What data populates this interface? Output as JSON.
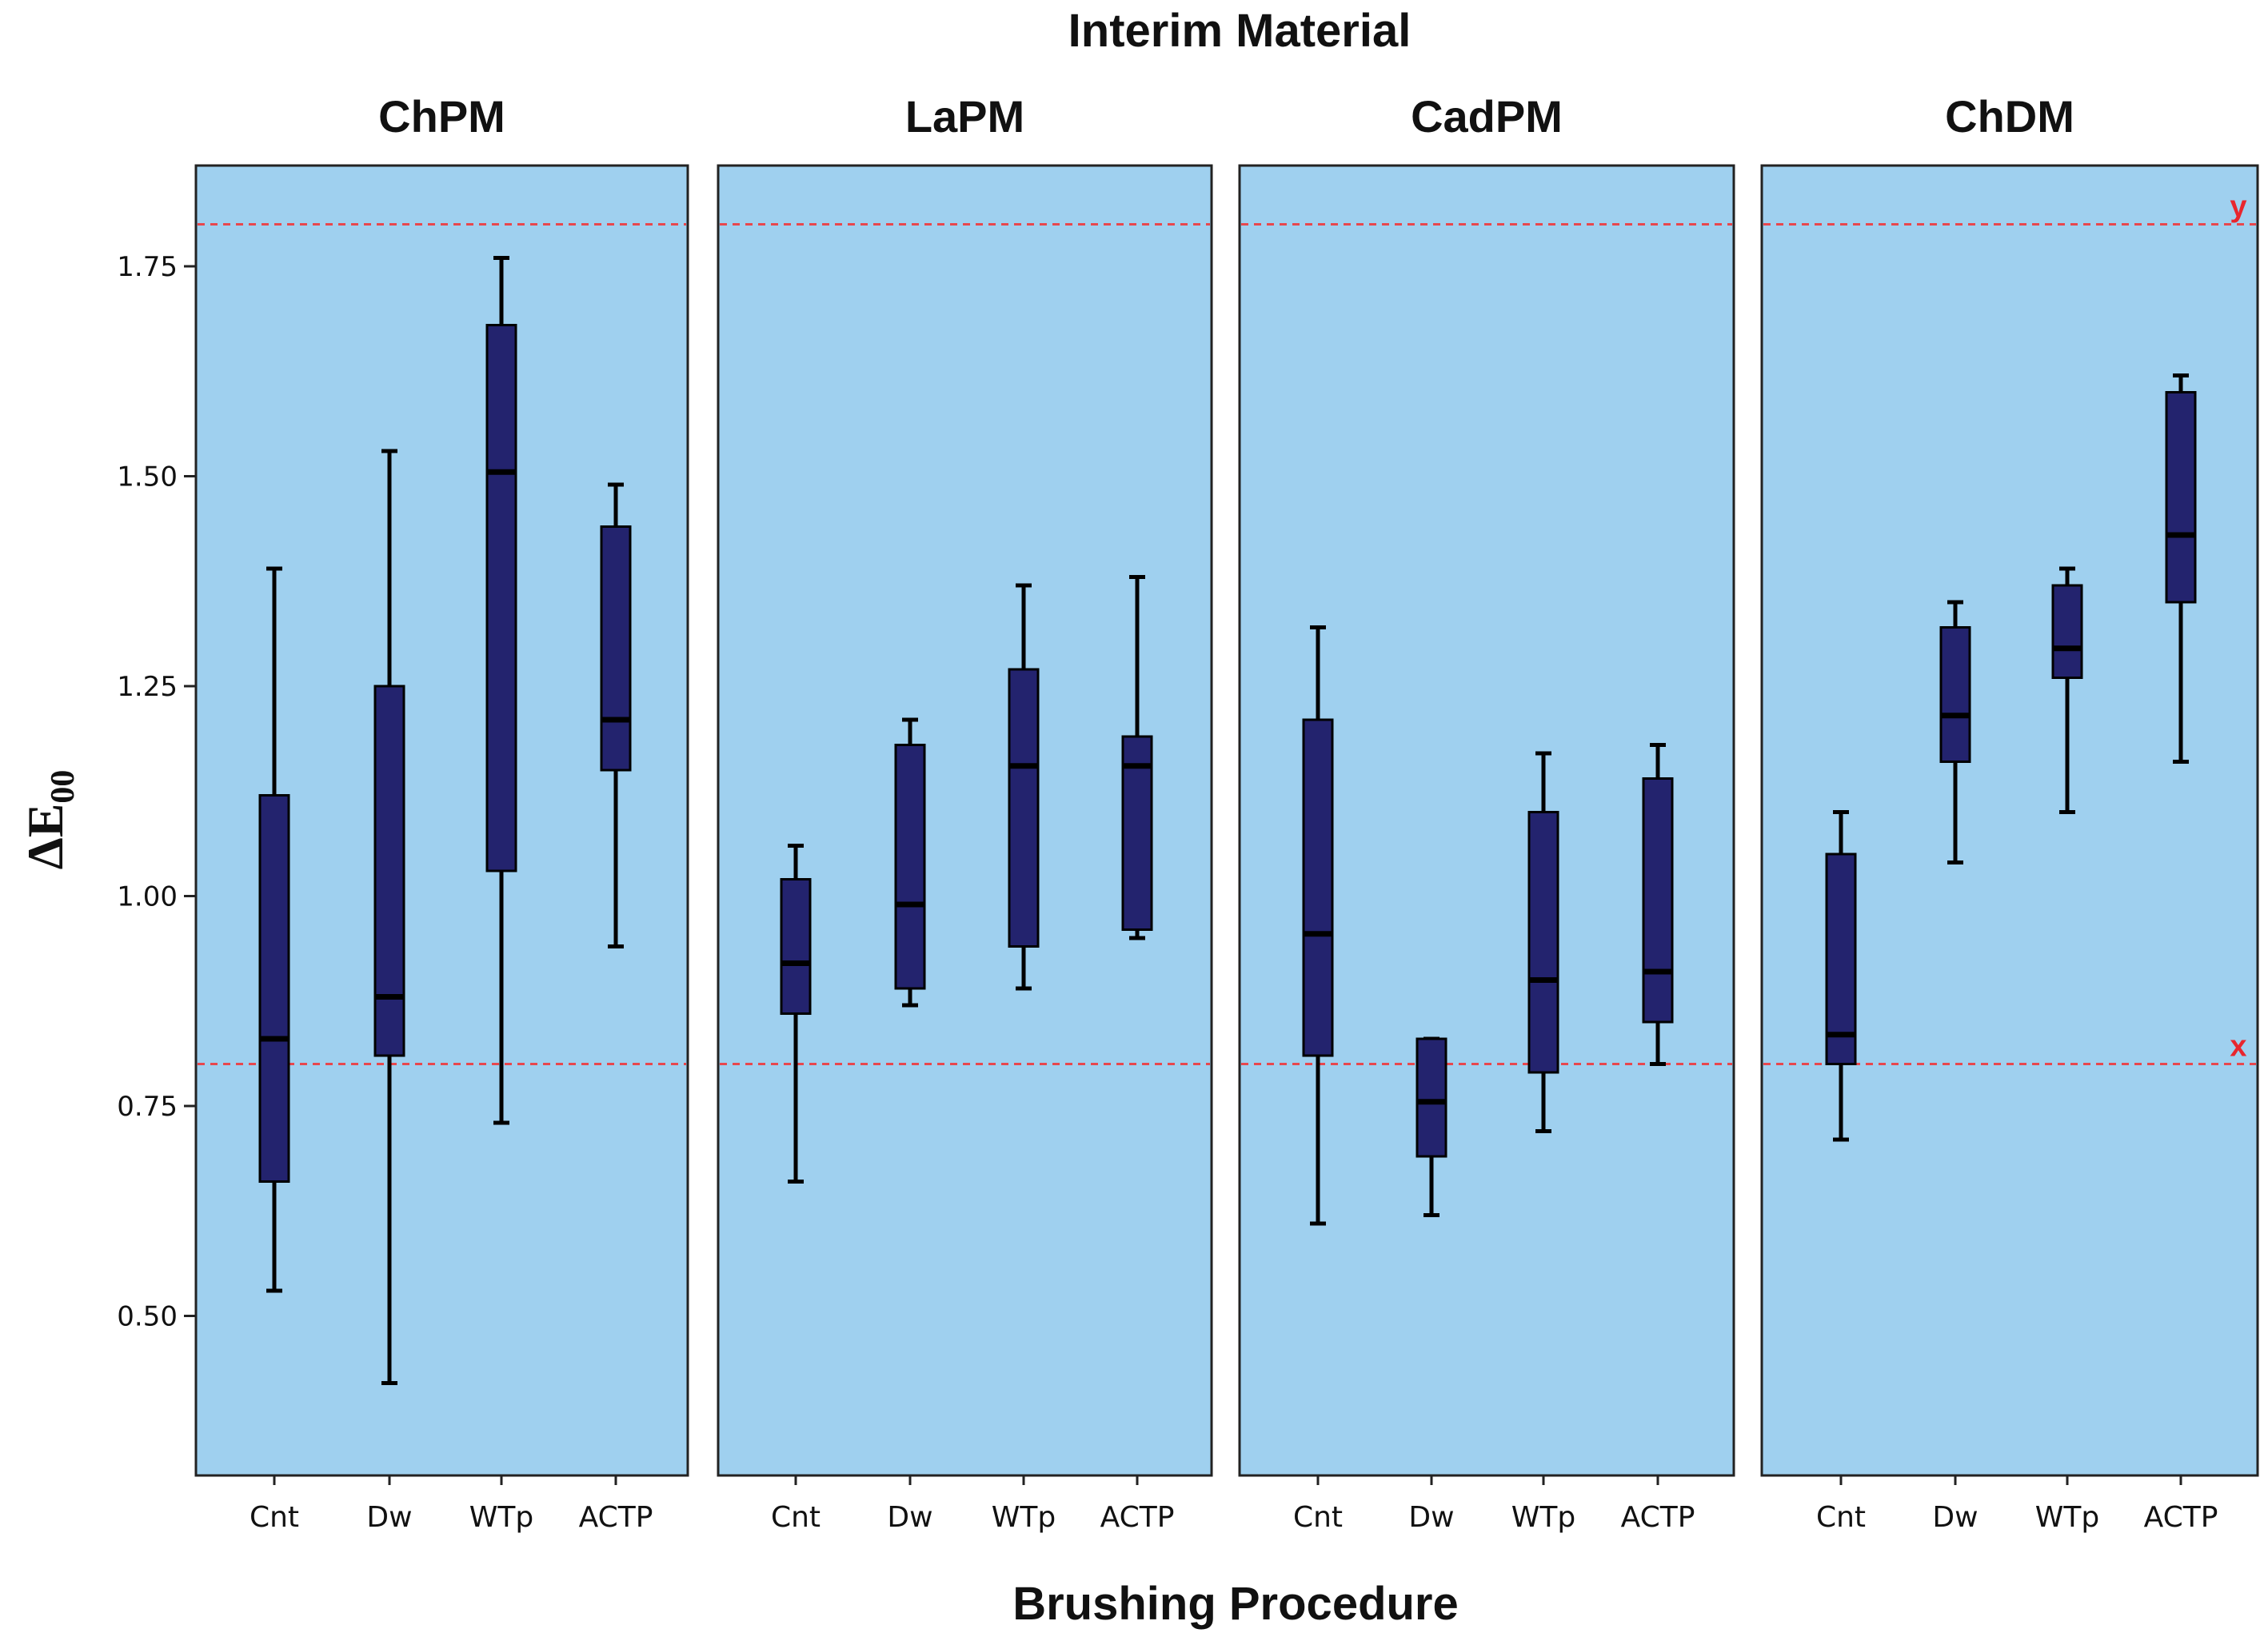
{
  "chart_data": {
    "type": "boxplot",
    "title": "Interim Material",
    "xlabel": "Brushing Procedure",
    "ylabel": "ΔE",
    "ylabel_subscript": "00",
    "ylim": [
      0.31,
      1.87
    ],
    "yticks": [
      0.5,
      0.75,
      1.0,
      1.25,
      1.5,
      1.75
    ],
    "ytick_labels": [
      "0.50",
      "0.75",
      "1.00",
      "1.25",
      "1.50",
      "1.75"
    ],
    "categories": [
      "Cnt",
      "Dw",
      "WTp",
      "ACTP"
    ],
    "reference_lines": [
      {
        "value": 0.8,
        "label": "x"
      },
      {
        "value": 1.8,
        "label": "y"
      }
    ],
    "colors": {
      "panel_bg": "#9fd0ef",
      "box": "#23236e",
      "reference": "#e8474d",
      "reference_label": "#e8262e"
    },
    "panels": [
      {
        "name": "ChPM",
        "boxes": [
          {
            "category": "Cnt",
            "min": 0.53,
            "q1": 0.66,
            "median": 0.83,
            "q3": 1.12,
            "max": 1.39
          },
          {
            "category": "Dw",
            "min": 0.42,
            "q1": 0.81,
            "median": 0.88,
            "q3": 1.25,
            "max": 1.53
          },
          {
            "category": "WTp",
            "min": 0.73,
            "q1": 1.03,
            "median": 1.505,
            "q3": 1.68,
            "max": 1.76
          },
          {
            "category": "ACTP",
            "min": 0.94,
            "q1": 1.15,
            "median": 1.21,
            "q3": 1.44,
            "max": 1.49
          }
        ]
      },
      {
        "name": "LaPM",
        "boxes": [
          {
            "category": "Cnt",
            "min": 0.66,
            "q1": 0.86,
            "median": 0.92,
            "q3": 1.02,
            "max": 1.06
          },
          {
            "category": "Dw",
            "min": 0.87,
            "q1": 0.89,
            "median": 0.99,
            "q3": 1.18,
            "max": 1.21
          },
          {
            "category": "WTp",
            "min": 0.89,
            "q1": 0.94,
            "median": 1.155,
            "q3": 1.27,
            "max": 1.37
          },
          {
            "category": "ACTP",
            "min": 0.95,
            "q1": 0.96,
            "median": 1.155,
            "q3": 1.19,
            "max": 1.38
          }
        ]
      },
      {
        "name": "CadPM",
        "boxes": [
          {
            "category": "Cnt",
            "min": 0.61,
            "q1": 0.81,
            "median": 0.955,
            "q3": 1.21,
            "max": 1.32
          },
          {
            "category": "Dw",
            "min": 0.62,
            "q1": 0.69,
            "median": 0.755,
            "q3": 0.83,
            "max": 0.83
          },
          {
            "category": "WTp",
            "min": 0.72,
            "q1": 0.79,
            "median": 0.9,
            "q3": 1.1,
            "max": 1.17
          },
          {
            "category": "ACTP",
            "min": 0.8,
            "q1": 0.85,
            "median": 0.91,
            "q3": 1.14,
            "max": 1.18
          }
        ]
      },
      {
        "name": "ChDM",
        "boxes": [
          {
            "category": "Cnt",
            "min": 0.71,
            "q1": 0.8,
            "median": 0.835,
            "q3": 1.05,
            "max": 1.1
          },
          {
            "category": "Dw",
            "min": 1.04,
            "q1": 1.16,
            "median": 1.215,
            "q3": 1.32,
            "max": 1.35
          },
          {
            "category": "WTp",
            "min": 1.1,
            "q1": 1.26,
            "median": 1.295,
            "q3": 1.37,
            "max": 1.39
          },
          {
            "category": "ACTP",
            "min": 1.16,
            "q1": 1.35,
            "median": 1.43,
            "q3": 1.6,
            "max": 1.62
          }
        ]
      }
    ]
  }
}
